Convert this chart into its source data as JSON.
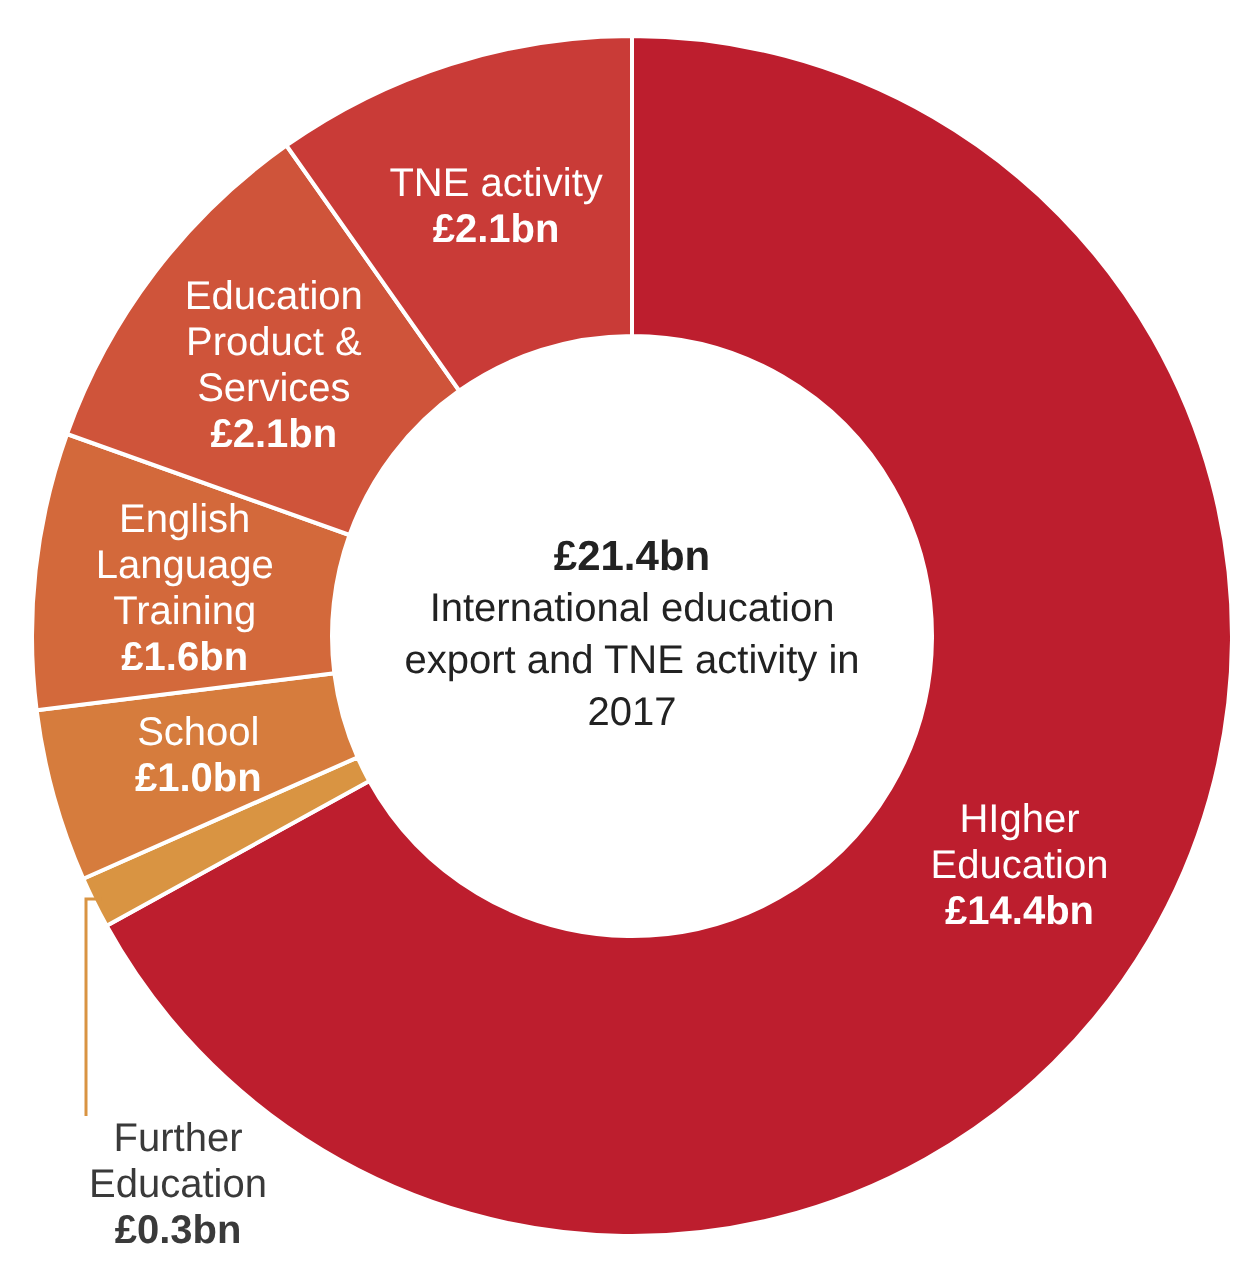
{
  "chart_data": {
    "type": "donut",
    "title": "£21.4bn",
    "subtitle": "International education export and TNE activity in 2017",
    "categories": [
      "HIgher Education",
      "Further Education",
      "School",
      "English Language Training",
      "Education Product & Services",
      "TNE activity"
    ],
    "values": [
      14.4,
      0.3,
      1.0,
      1.6,
      2.1,
      2.1
    ],
    "value_labels": [
      "£14.4bn",
      "£0.3bn",
      "£1.0bn",
      "£1.6bn",
      "£2.1bn",
      "£2.1bn"
    ],
    "colors": [
      "#bd1e2e",
      "#d99442",
      "#d67c3d",
      "#d3693b",
      "#cf543a",
      "#c93b37"
    ],
    "legend": false
  }
}
